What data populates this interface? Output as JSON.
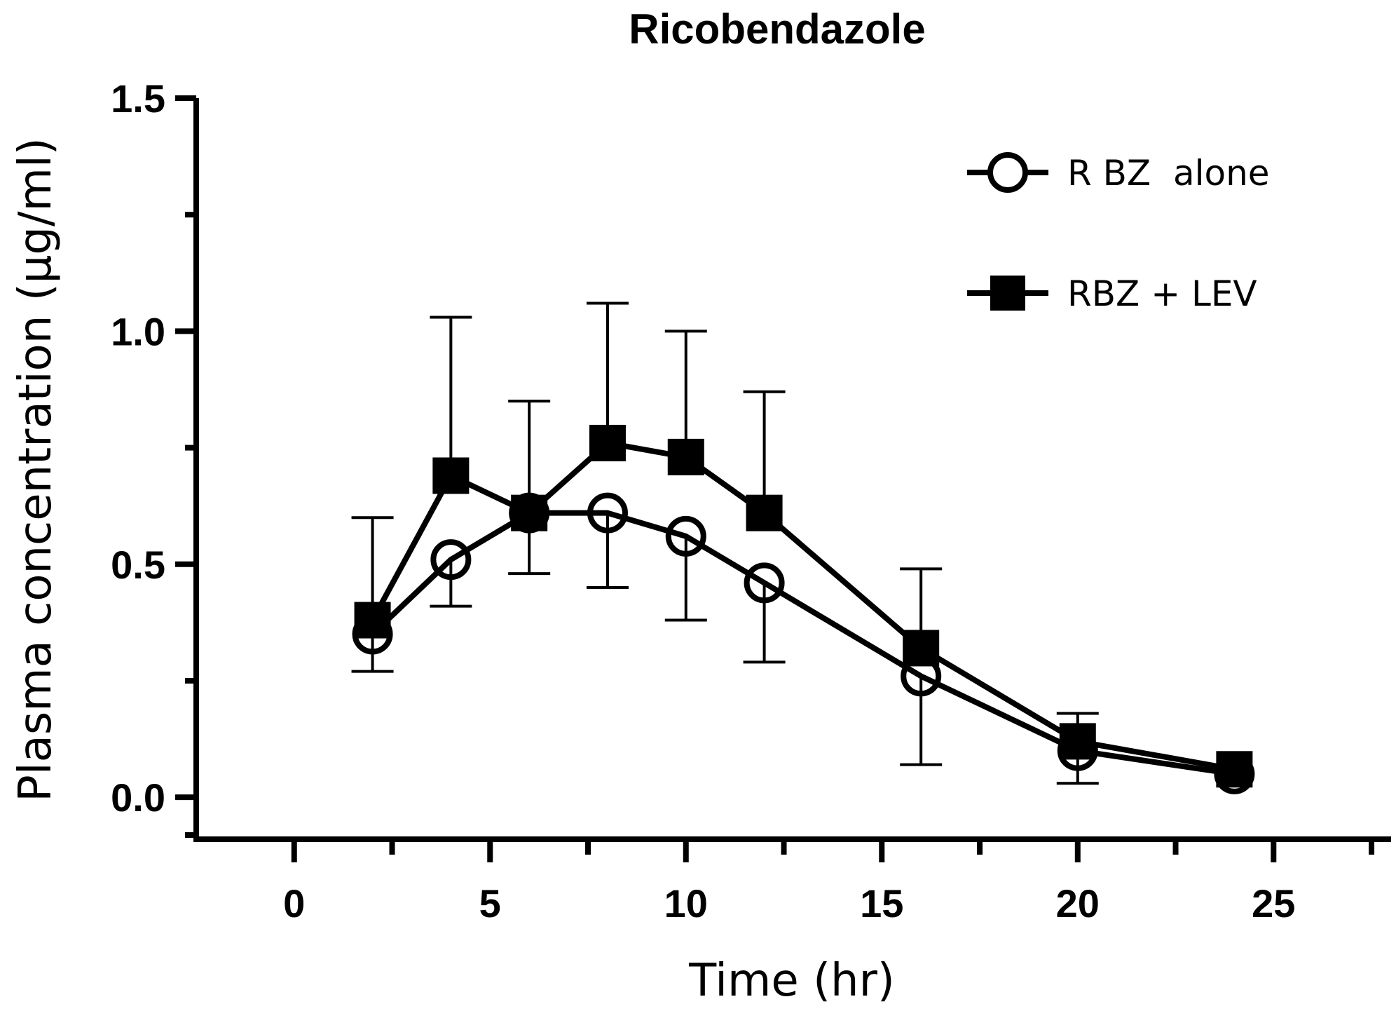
{
  "chart_data": {
    "type": "line",
    "title": "Ricobendazole",
    "xlabel": "Time (hr)",
    "ylabel": "Plasma concentration (μg/ml)",
    "xlim": [
      -2.5,
      28
    ],
    "ylim": [
      -0.09,
      1.5
    ],
    "x_ticks": [
      0,
      5,
      10,
      15,
      20,
      25
    ],
    "x_tick_labels": [
      "0",
      "5",
      "10",
      "15",
      "20",
      "25"
    ],
    "x_minor_ticks": [
      2.5,
      7.5,
      12.5,
      17.5,
      22.5,
      27.5
    ],
    "y_ticks": [
      0.0,
      0.5,
      1.0,
      1.5
    ],
    "y_tick_labels": [
      "0.0",
      "0.5",
      "1.0",
      "1.5"
    ],
    "y_minor_ticks": [
      0.25,
      0.75,
      1.25
    ],
    "grid": false,
    "legend_position": "top-right",
    "series": [
      {
        "name": "RBZ + LEV",
        "marker": "filled-square",
        "color": "#000000",
        "x": [
          2,
          4,
          6,
          8,
          10,
          12,
          16,
          20,
          24
        ],
        "y": [
          0.38,
          0.69,
          0.61,
          0.76,
          0.73,
          0.61,
          0.32,
          0.12,
          0.06
        ],
        "error_upper": [
          0.6,
          1.03,
          0.85,
          1.06,
          1.0,
          0.87,
          0.49,
          0.18,
          null
        ]
      },
      {
        "name": "R BZ  alone",
        "marker": "open-circle",
        "color": "#000000",
        "x": [
          2,
          4,
          6,
          8,
          10,
          12,
          16,
          20,
          24
        ],
        "y": [
          0.35,
          0.51,
          0.61,
          0.61,
          0.56,
          0.46,
          0.26,
          0.1,
          0.05
        ],
        "error_lower": [
          0.27,
          0.41,
          0.48,
          0.45,
          0.38,
          0.29,
          0.07,
          0.03,
          null
        ]
      }
    ]
  }
}
